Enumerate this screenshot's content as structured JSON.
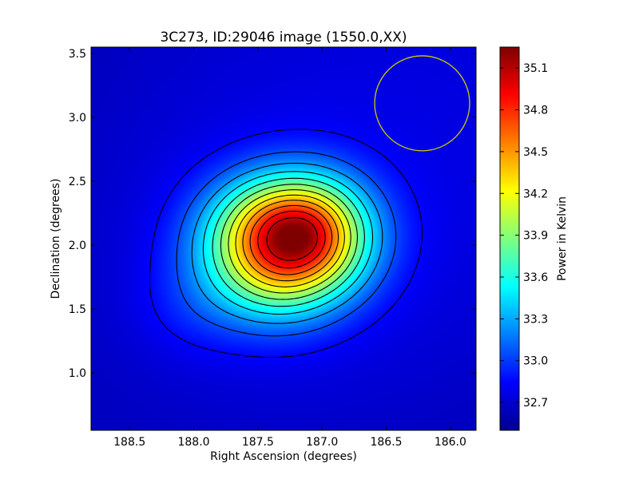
{
  "chart_data": {
    "type": "heatmap",
    "title": "3C273, ID:29046 image (1550.0,XX)",
    "xlabel": "Right Ascension (degrees)",
    "ylabel": "Declination (degrees)",
    "xlim": [
      188.8,
      185.8
    ],
    "ylim": [
      0.55,
      3.55
    ],
    "x_reversed": true,
    "x_ticks": [
      188.5,
      188.0,
      187.5,
      187.0,
      186.5,
      186.0
    ],
    "x_tick_labels": [
      "188.5",
      "188.0",
      "187.5",
      "187.0",
      "186.5",
      "186.0"
    ],
    "y_ticks": [
      1.0,
      1.5,
      2.0,
      2.5,
      3.0,
      3.5
    ],
    "y_tick_labels": [
      "1.0",
      "1.5",
      "2.0",
      "2.5",
      "3.0",
      "3.5"
    ],
    "colorbar": {
      "label": "Power in Kelvin",
      "colormap": "jet",
      "range": [
        32.5,
        35.25
      ],
      "ticks": [
        32.7,
        33.0,
        33.3,
        33.6,
        33.9,
        34.2,
        34.5,
        34.8,
        35.1
      ],
      "tick_labels": [
        "32.7",
        "33.0",
        "33.3",
        "33.6",
        "33.9",
        "34.2",
        "34.5",
        "34.8",
        "35.1"
      ]
    },
    "source": {
      "ra": 187.22,
      "dec": 2.06,
      "peak_value": 35.2
    },
    "background_value": 32.65,
    "contour_levels": [
      32.85,
      33.05,
      33.25,
      33.45,
      33.65,
      33.85,
      34.05,
      34.25,
      34.45,
      34.65,
      34.85,
      35.05
    ],
    "beam_circle": {
      "ra": 186.22,
      "dec": 3.11,
      "radius_deg": 0.37,
      "color": "#cccc00"
    },
    "contour_color": "#000000"
  }
}
